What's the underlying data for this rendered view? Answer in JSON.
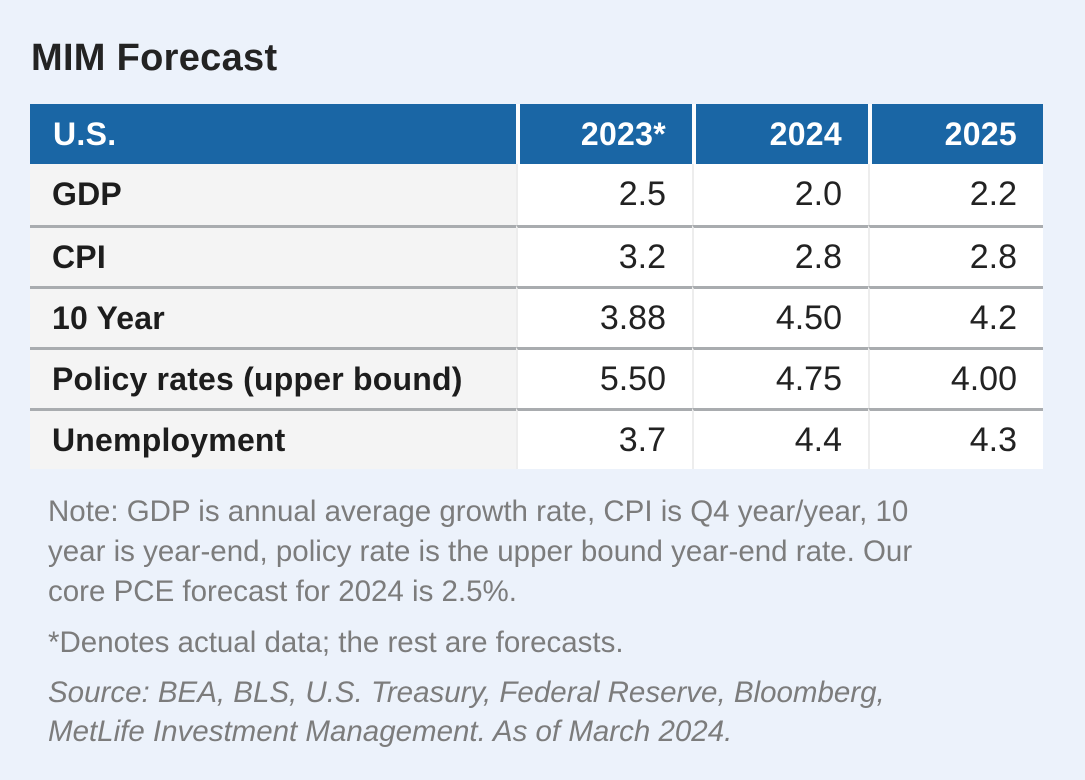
{
  "title": "MIM Forecast",
  "colors": {
    "page_background": "#ECF2FB",
    "header_background": "#1A66A5",
    "header_text": "#FFFFFF",
    "label_cell_background": "#F4F4F4",
    "value_cell_background": "#FFFFFF",
    "row_divider": "#A9ACAF",
    "note_text": "#7C7C7C",
    "title_text": "#232323"
  },
  "table": {
    "header": {
      "region": "U.S.",
      "years": [
        "2023*",
        "2024",
        "2025"
      ]
    },
    "rows": [
      {
        "label": "GDP",
        "values": [
          "2.5",
          "2.0",
          "2.2"
        ]
      },
      {
        "label": "CPI",
        "values": [
          "3.2",
          "2.8",
          "2.8"
        ]
      },
      {
        "label": "10 Year",
        "values": [
          "3.88",
          "4.50",
          "4.2"
        ]
      },
      {
        "label": "Policy rates (upper bound)",
        "values": [
          "5.50",
          "4.75",
          "4.00"
        ]
      },
      {
        "label": "Unemployment",
        "values": [
          "3.7",
          "4.4",
          "4.3"
        ]
      }
    ]
  },
  "notes": {
    "note_lines": [
      "Note: GDP is annual average growth rate, CPI is Q4 year/year, 10",
      "year is year-end, policy rate is the upper bound year-end rate. Our",
      "core PCE forecast for 2024 is 2.5%."
    ],
    "asterisk": "*Denotes actual data; the rest are forecasts.",
    "source_lines": [
      "Source: BEA, BLS, U.S. Treasury, Federal Reserve, Bloomberg,",
      "MetLife Investment Management. As of March 2024."
    ]
  },
  "chart_data": {
    "type": "table",
    "title": "MIM Forecast",
    "region": "U.S.",
    "categories": [
      "2023*",
      "2024",
      "2025"
    ],
    "series": [
      {
        "name": "GDP",
        "values": [
          2.5,
          2.0,
          2.2
        ]
      },
      {
        "name": "CPI",
        "values": [
          3.2,
          2.8,
          2.8
        ]
      },
      {
        "name": "10 Year",
        "values": [
          3.88,
          4.5,
          4.2
        ]
      },
      {
        "name": "Policy rates (upper bound)",
        "values": [
          5.5,
          4.75,
          4.0
        ]
      },
      {
        "name": "Unemployment",
        "values": [
          3.7,
          4.4,
          4.3
        ]
      }
    ],
    "footnotes": {
      "note": "Note: GDP is annual average growth rate, CPI is Q4 year/year, 10 year is year-end, policy rate is the upper bound year-end rate. Our core PCE forecast for 2024 is 2.5%.",
      "asterisk": "*Denotes actual data; the rest are forecasts.",
      "source": "Source: BEA, BLS, U.S. Treasury, Federal Reserve, Bloomberg, MetLife Investment Management. As of March 2024."
    }
  }
}
